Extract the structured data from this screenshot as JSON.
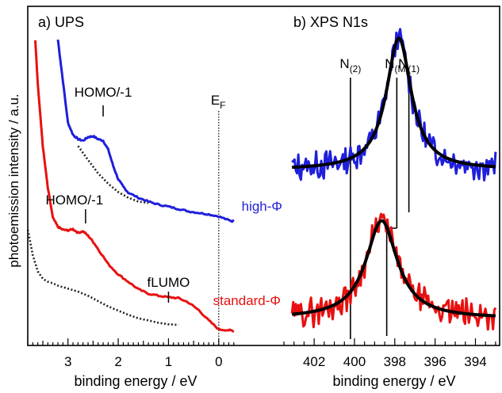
{
  "ylabel": "photoemission intensity / a.u.",
  "chart_data": [
    {
      "type": "line",
      "panel_title": "a) UPS",
      "xlabel": "binding energy / eV",
      "xlim": [
        3.8,
        -0.35
      ],
      "x_reversed": true,
      "xticks": [
        3,
        2,
        1,
        0
      ],
      "ef_label": "E",
      "ef_sub": "F",
      "ef_position": 0,
      "yticks_shown": false,
      "series": [
        {
          "color": "#1f1fdc",
          "x": [
            3.2,
            3.1,
            3.0,
            2.9,
            2.8,
            2.7,
            2.6,
            2.5,
            2.4,
            2.3,
            2.2,
            2.1,
            2.0,
            1.9,
            1.8,
            1.6,
            1.4,
            1.2,
            1.0,
            0.8,
            0.6,
            0.4,
            0.2,
            0.0,
            -0.2,
            -0.3
          ],
          "y": [
            10.0,
            8.6,
            7.2,
            6.8,
            6.65,
            6.6,
            6.72,
            6.75,
            6.65,
            6.6,
            6.3,
            5.75,
            5.3,
            5.05,
            4.85,
            4.68,
            4.55,
            4.45,
            4.38,
            4.3,
            4.22,
            4.17,
            4.12,
            4.05,
            3.92,
            3.88
          ]
        },
        {
          "color": "#222222",
          "dashed": true,
          "x": [
            2.8,
            2.6,
            2.4,
            2.2,
            2.0,
            1.8,
            1.6,
            1.4
          ],
          "y": [
            6.42,
            5.95,
            5.5,
            5.15,
            4.87,
            4.68,
            4.55,
            4.5
          ]
        },
        {
          "color": "#e81010",
          "x": [
            3.65,
            3.6,
            3.5,
            3.4,
            3.3,
            3.2,
            3.1,
            3.0,
            2.9,
            2.8,
            2.7,
            2.6,
            2.5,
            2.4,
            2.2,
            2.0,
            1.8,
            1.6,
            1.4,
            1.2,
            1.0,
            0.8,
            0.6,
            0.4,
            0.2,
            0.0,
            -0.2,
            -0.3
          ],
          "y": [
            10.0,
            8.5,
            6.4,
            5.0,
            4.0,
            3.7,
            3.6,
            3.58,
            3.62,
            3.5,
            3.55,
            3.4,
            3.2,
            2.95,
            2.45,
            2.1,
            1.85,
            1.6,
            1.45,
            1.38,
            1.33,
            1.3,
            1.15,
            0.9,
            0.55,
            0.25,
            0.22,
            0.2
          ]
        },
        {
          "color": "#222222",
          "dashed": true,
          "x": [
            3.8,
            3.7,
            3.6,
            3.5,
            3.4,
            3.3,
            3.2,
            3.0,
            2.8,
            2.6,
            2.4,
            2.2,
            2.0,
            1.8,
            1.6,
            1.4,
            1.2,
            1.0,
            0.8
          ],
          "y": [
            3.6,
            2.75,
            2.2,
            1.95,
            1.85,
            1.8,
            1.72,
            1.62,
            1.52,
            1.38,
            1.2,
            1.02,
            0.88,
            0.74,
            0.62,
            0.55,
            0.47,
            0.42,
            0.4
          ]
        }
      ],
      "annotations": [
        {
          "label": "HOMO/-1",
          "x": 2.3
        },
        {
          "label": "HOMO/-1",
          "x": 2.65
        },
        {
          "label": "fLUMO",
          "x": 1.0
        }
      ]
    },
    {
      "type": "line",
      "panel_title": "b) XPS N1s",
      "xlabel": "binding energy / eV",
      "xlim": [
        403.5,
        392.8
      ],
      "x_reversed": true,
      "xticks": [
        402,
        400,
        398,
        396,
        394
      ],
      "series": [
        {
          "name": "high-Φ",
          "color": "#1f1fdc",
          "fit_color": "#000000",
          "center": 397.8,
          "width": 1.5,
          "amplitude": 3.5,
          "baseline": 4.75,
          "x_range": [
            403.1,
            393.0
          ]
        },
        {
          "name": "standard-Φ",
          "color": "#e81010",
          "fit_color": "#000000",
          "center": 398.65,
          "width": 1.9,
          "amplitude": 2.6,
          "baseline": 0.8,
          "x_range": [
            403.1,
            393.0
          ]
        }
      ],
      "markers": [
        {
          "label": "N",
          "sub": "(2)",
          "x": 400.2
        },
        {
          "label": "N",
          "sub": "(M)",
          "x": 397.9
        },
        {
          "label": "N",
          "sub": "(1)",
          "x": 397.3
        }
      ],
      "step_marker": {
        "x": 398.4
      }
    }
  ]
}
